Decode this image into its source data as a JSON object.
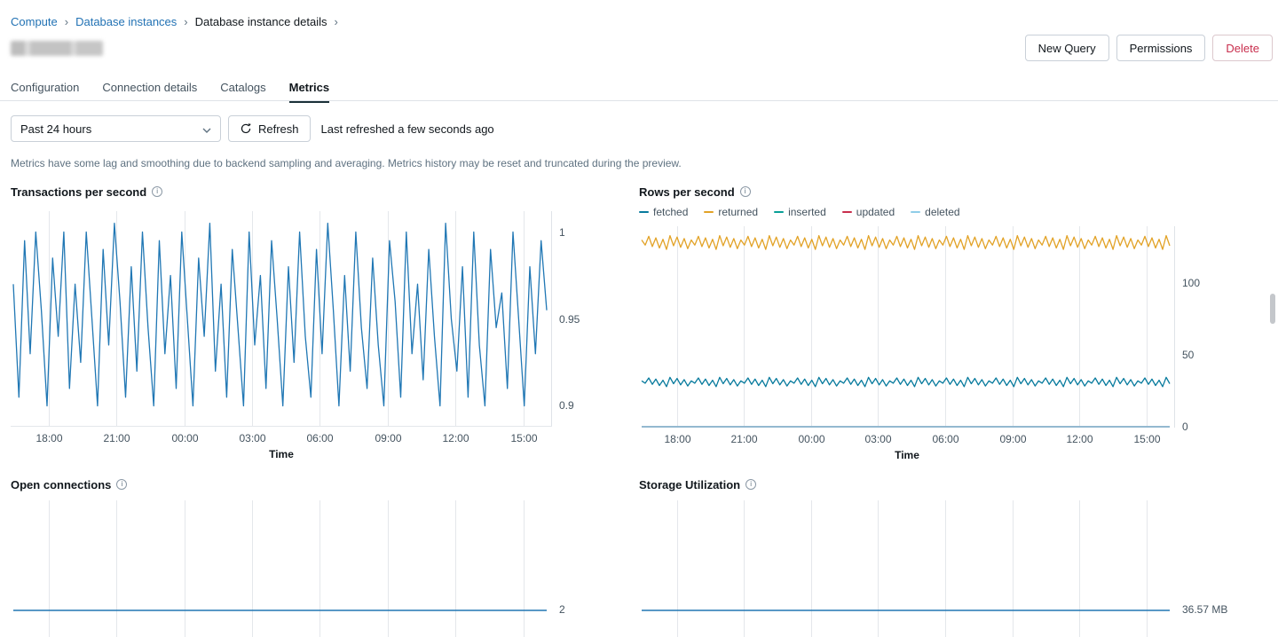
{
  "breadcrumb": {
    "separator": "›",
    "items": [
      {
        "label": "Compute"
      },
      {
        "label": "Database instances"
      },
      {
        "label": "Database instance details"
      }
    ]
  },
  "header": {
    "buttons": [
      {
        "label": "New Query"
      },
      {
        "label": "Permissions"
      },
      {
        "label": "Delete",
        "variant": "danger"
      }
    ]
  },
  "tabs": [
    {
      "label": "Configuration"
    },
    {
      "label": "Connection details"
    },
    {
      "label": "Catalogs"
    },
    {
      "label": "Metrics",
      "active": true
    }
  ],
  "controls": {
    "time_range": "Past 24 hours",
    "refresh_label": "Refresh",
    "last_refreshed": "Last refreshed a few seconds ago"
  },
  "notice": "Metrics have some lag and smoothing due to backend sampling and averaging. Metrics history may be reset and truncated during the preview.",
  "icons": {
    "info": "i"
  },
  "chart_data": [
    {
      "id": "tps",
      "type": "line",
      "title": "Transactions per second",
      "xlabel": "Time",
      "x_ticks": [
        "18:00",
        "21:00",
        "00:00",
        "03:00",
        "06:00",
        "09:00",
        "12:00",
        "15:00"
      ],
      "ylim": [
        0.888,
        1.012
      ],
      "y_ticks": [
        {
          "v": 1,
          "label": "1"
        },
        {
          "v": 0.95,
          "label": "0.95"
        },
        {
          "v": 0.9,
          "label": "0.9"
        }
      ],
      "series": [
        {
          "name": "transactions per second",
          "color": "#2077b4",
          "kind": "values",
          "values": [
            0.97,
            0.905,
            0.995,
            0.93,
            1.0,
            0.955,
            0.9,
            0.985,
            0.94,
            1.0,
            0.91,
            0.97,
            0.925,
            1.0,
            0.95,
            0.9,
            0.99,
            0.935,
            1.005,
            0.96,
            0.905,
            0.98,
            0.92,
            1.0,
            0.945,
            0.9,
            0.995,
            0.93,
            0.975,
            0.91,
            1.0,
            0.95,
            0.9,
            0.985,
            0.94,
            1.005,
            0.92,
            0.97,
            0.905,
            0.99,
            0.945,
            0.9,
            1.0,
            0.935,
            0.975,
            0.91,
            0.995,
            0.95,
            0.9,
            0.98,
            0.925,
            1.0,
            0.94,
            0.905,
            0.99,
            0.93,
            1.005,
            0.955,
            0.9,
            0.975,
            0.92,
            1.0,
            0.945,
            0.91,
            0.985,
            0.935,
            0.9,
            0.995,
            0.96,
            0.905,
            1.0,
            0.93,
            0.97,
            0.915,
            0.99,
            0.94,
            0.9,
            1.005,
            0.95,
            0.92,
            0.98,
            0.905,
            1.0,
            0.935,
            0.9,
            0.99,
            0.945,
            0.965,
            0.91,
            1.0,
            0.95,
            0.9,
            0.98,
            0.93,
            0.995,
            0.955
          ]
        }
      ]
    },
    {
      "id": "rps",
      "type": "line",
      "title": "Rows per second",
      "xlabel": "Time",
      "x_ticks": [
        "18:00",
        "21:00",
        "00:00",
        "03:00",
        "06:00",
        "09:00",
        "12:00",
        "15:00"
      ],
      "ylim": [
        0,
        139
      ],
      "y_ticks": [
        {
          "v": 100,
          "label": "100"
        },
        {
          "v": 50,
          "label": "50"
        },
        {
          "v": 0,
          "label": "0"
        }
      ],
      "legend": [
        {
          "name": "fetched",
          "color": "#077a9d"
        },
        {
          "name": "returned",
          "color": "#e2a226"
        },
        {
          "name": "inserted",
          "color": "#089f97"
        },
        {
          "name": "updated",
          "color": "#c82d4c"
        },
        {
          "name": "deleted",
          "color": "#8fcde8"
        }
      ],
      "series": [
        {
          "name": "inserted",
          "color": "#089f97",
          "kind": "flat",
          "value": 0
        },
        {
          "name": "updated",
          "color": "#c82d4c",
          "kind": "flat",
          "value": 0
        },
        {
          "name": "deleted",
          "color": "#8fcde8",
          "kind": "flat",
          "value": 0
        },
        {
          "name": "fetched",
          "color": "#077a9d",
          "kind": "zigzag",
          "low": 29.5,
          "high": 33.5,
          "wobble": 0.4,
          "points": 150
        },
        {
          "name": "returned",
          "color": "#e2a226",
          "kind": "zigzag",
          "low": 124.5,
          "high": 131,
          "wobble": 0.5,
          "points": 150
        }
      ]
    },
    {
      "id": "conn",
      "type": "line",
      "title": "Open connections",
      "series": [
        {
          "name": "open connections",
          "color": "#2077b4",
          "kind": "flat",
          "value": 2,
          "label": "2"
        }
      ]
    },
    {
      "id": "storage",
      "type": "line",
      "title": "Storage Utilization",
      "series": [
        {
          "name": "storage used",
          "color": "#2077b4",
          "kind": "flat",
          "value": 36.57,
          "label": "36.57 MB"
        }
      ]
    }
  ]
}
